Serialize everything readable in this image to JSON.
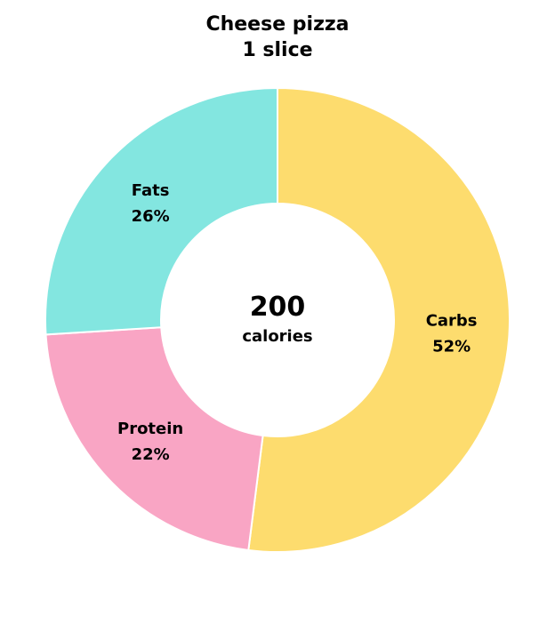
{
  "chart_data": {
    "type": "pie",
    "title": "Cheese pizza",
    "subtitle": "1 slice",
    "center_value": "200",
    "center_unit": "calories",
    "slices": [
      {
        "label": "Carbs",
        "value": 52,
        "value_label": "52%",
        "color": "#FDDC6E"
      },
      {
        "label": "Protein",
        "value": 22,
        "value_label": "22%",
        "color": "#F9A5C4"
      },
      {
        "label": "Fats",
        "value": 26,
        "value_label": "26%",
        "color": "#83E6E0"
      }
    ]
  }
}
